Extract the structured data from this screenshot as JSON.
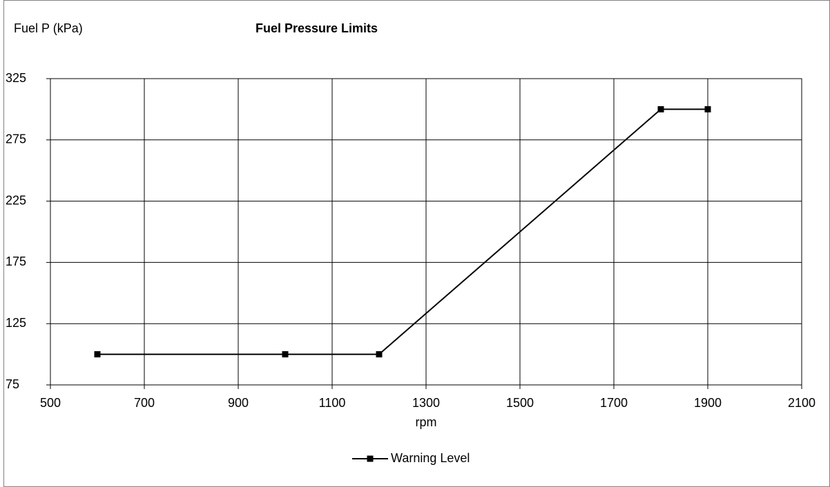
{
  "chart_data": {
    "type": "line",
    "title": "Fuel Pressure Limits",
    "y_label": "Fuel P (kPa)",
    "x_label": "rpm",
    "x": [
      600,
      1000,
      1200,
      1800,
      1900
    ],
    "series": [
      {
        "name": "Warning Level",
        "color": "#000000",
        "values": [
          100,
          100,
          100,
          300,
          300
        ]
      }
    ],
    "xlim": [
      500,
      2100
    ],
    "xticks": [
      500,
      700,
      900,
      1100,
      1300,
      1500,
      1700,
      1900,
      2100
    ],
    "ylim": [
      75,
      325
    ],
    "yticks": [
      75,
      125,
      175,
      225,
      275,
      325
    ],
    "grid": true,
    "legend": "bottom",
    "marker": "square"
  }
}
